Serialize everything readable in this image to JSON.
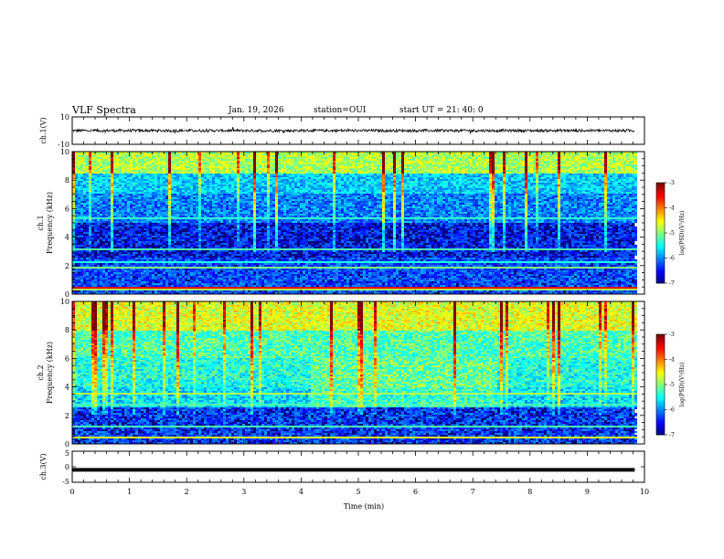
{
  "header": {
    "title": "VLF Spectra",
    "date": "Jan. 19, 2026",
    "station": "station=OUI",
    "start": "start UT =  21: 40: 0"
  },
  "chart_data": [
    {
      "type": "line",
      "name": "ch1-waveform",
      "ylabel": "ch.1(V)",
      "ylim": [
        -10,
        10
      ],
      "yticks": [
        {
          "v": 10,
          "label": "10"
        },
        {
          "v": -10,
          "label": "-10"
        }
      ],
      "series_description_level": 0,
      "noise_amplitude": 1.0
    },
    {
      "type": "heatmap",
      "name": "ch1-spectrogram",
      "ylabel": "ch.1",
      "ylabel2": "Frequency (kHz)",
      "ylim": [
        0,
        10
      ],
      "yticks": [
        "0",
        "2",
        "4",
        "6",
        "8",
        "10"
      ],
      "colorbar": {
        "range": [
          -7,
          -3
        ],
        "ticks": [
          "-3",
          "-4",
          "-5",
          "-6",
          "-7"
        ],
        "label": "log(PSD)(V²/Hz)"
      }
    },
    {
      "type": "heatmap",
      "name": "ch2-spectrogram",
      "ylabel": "ch.2",
      "ylabel2": "Frequency (kHz)",
      "ylim": [
        0,
        10
      ],
      "yticks": [
        "0",
        "2",
        "4",
        "6",
        "8",
        "10"
      ],
      "colorbar": {
        "range": [
          -7,
          -3
        ],
        "ticks": [
          "-3",
          "-4",
          "-5",
          "-6",
          "-7"
        ],
        "label": "log(PSD)(V²/Hz)"
      }
    },
    {
      "type": "line",
      "name": "ch3-waveform",
      "ylabel": "ch.3(V)",
      "ylim": [
        -5,
        5
      ],
      "yticks": [
        {
          "v": 5,
          "label": "5"
        },
        {
          "v": 0,
          "label": "0"
        },
        {
          "v": -5,
          "label": "-5"
        }
      ],
      "level": -1.0
    }
  ],
  "xaxis": {
    "label": "Time (min)",
    "range": [
      0,
      10
    ],
    "ticks": [
      "0",
      "1",
      "2",
      "3",
      "4",
      "5",
      "6",
      "7",
      "8",
      "9",
      "10"
    ],
    "data_end": 9.83
  }
}
